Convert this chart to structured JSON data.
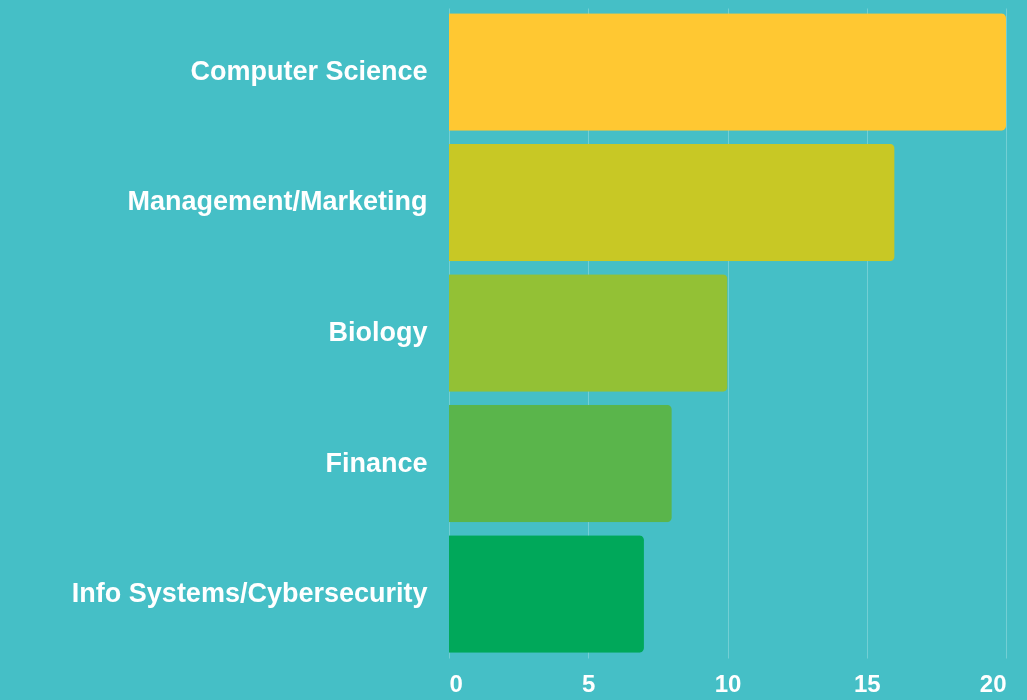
{
  "chart_data": {
    "type": "bar",
    "orientation": "horizontal",
    "categories": [
      "Computer Science",
      "Management/Marketing",
      "Biology",
      "Finance",
      "Info Systems/Cybersecurity"
    ],
    "values": [
      20,
      16,
      10,
      8,
      7
    ],
    "colors": [
      "#ffc832",
      "#c8c825",
      "#93c135",
      "#5ab54b",
      "#00a85a"
    ],
    "xlim": [
      0,
      20
    ],
    "xticks": [
      0,
      5,
      10,
      15,
      20
    ],
    "grid": "x"
  }
}
